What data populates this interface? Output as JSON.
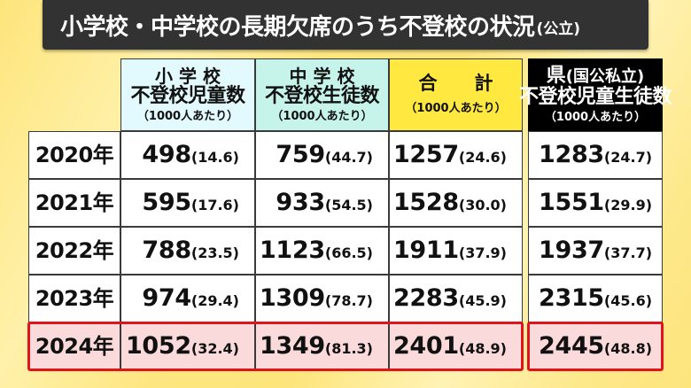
{
  "title": {
    "main": "小学校・中学校の長期欠席のうち不登校の状況",
    "suffix": "(公立)"
  },
  "table": {
    "headers": {
      "elementary": {
        "line1": "小 学 校",
        "line2": "不登校児童数",
        "note": "（1000人あたり）"
      },
      "middle": {
        "line1": "中 学 校",
        "line2": "不登校生徒数",
        "note": "（1000人あたり）"
      },
      "total": {
        "line1": "合　　計",
        "note": "（1000人あたり）"
      },
      "prefecture": {
        "line1_main": "県",
        "line1_sub": "(国公私立)",
        "line2": "不登校児童生徒数",
        "note": "（1000人あたり）"
      }
    },
    "rows": [
      {
        "year": "2020年",
        "elementary": {
          "count": "498",
          "rate": "(14.6)"
        },
        "middle": {
          "count": "759",
          "rate": "(44.7)"
        },
        "total": {
          "count": "1257",
          "rate": "(24.6)"
        },
        "prefecture": {
          "count": "1283",
          "rate": "(24.7)"
        }
      },
      {
        "year": "2021年",
        "elementary": {
          "count": "595",
          "rate": "(17.6)"
        },
        "middle": {
          "count": "933",
          "rate": "(54.5)"
        },
        "total": {
          "count": "1528",
          "rate": "(30.0)"
        },
        "prefecture": {
          "count": "1551",
          "rate": "(29.9)"
        }
      },
      {
        "year": "2022年",
        "elementary": {
          "count": "788",
          "rate": "(23.5)"
        },
        "middle": {
          "count": "1123",
          "rate": "(66.5)"
        },
        "total": {
          "count": "1911",
          "rate": "(37.9)"
        },
        "prefecture": {
          "count": "1937",
          "rate": "(37.7)"
        }
      },
      {
        "year": "2023年",
        "elementary": {
          "count": "974",
          "rate": "(29.4)"
        },
        "middle": {
          "count": "1309",
          "rate": "(78.7)"
        },
        "total": {
          "count": "2283",
          "rate": "(45.9)"
        },
        "prefecture": {
          "count": "2315",
          "rate": "(45.6)"
        }
      },
      {
        "year": "2024年",
        "elementary": {
          "count": "1052",
          "rate": "(32.4)"
        },
        "middle": {
          "count": "1349",
          "rate": "(81.3)"
        },
        "total": {
          "count": "2401",
          "rate": "(48.9)"
        },
        "prefecture": {
          "count": "2445",
          "rate": "(48.8)"
        }
      }
    ],
    "highlighted_row": "2024年"
  },
  "colors": {
    "background": "#fde57c",
    "title_bar": "#323232",
    "header_elementary": "#e2f9fd",
    "header_middle": "#c6f3ea",
    "header_total": "#ffe83f",
    "header_prefecture": "#000000",
    "highlight_border": "#e0141a",
    "highlight_fill": "#fadada"
  },
  "chart_data": {
    "type": "table",
    "title": "小学校・中学校の長期欠席のうち不登校の状況(公立)",
    "columns": [
      "年",
      "小学校 不登校児童数",
      "小学校 1000人あたり",
      "中学校 不登校生徒数",
      "中学校 1000人あたり",
      "合計",
      "合計 1000人あたり",
      "県(国公私立) 不登校児童生徒数",
      "県 1000人あたり"
    ],
    "categories": [
      "2020年",
      "2021年",
      "2022年",
      "2023年",
      "2024年"
    ],
    "series": [
      {
        "name": "小学校 不登校児童数",
        "values": [
          498,
          595,
          788,
          974,
          1052
        ]
      },
      {
        "name": "小学校 1000人あたり",
        "values": [
          14.6,
          17.6,
          23.5,
          29.4,
          32.4
        ]
      },
      {
        "name": "中学校 不登校生徒数",
        "values": [
          759,
          933,
          1123,
          1309,
          1349
        ]
      },
      {
        "name": "中学校 1000人あたり",
        "values": [
          44.7,
          54.5,
          66.5,
          78.7,
          81.3
        ]
      },
      {
        "name": "合計",
        "values": [
          1257,
          1528,
          1911,
          2283,
          2401
        ]
      },
      {
        "name": "合計 1000人あたり",
        "values": [
          24.6,
          30.0,
          37.9,
          45.9,
          48.9
        ]
      },
      {
        "name": "県(国公私立) 不登校児童生徒数",
        "values": [
          1283,
          1551,
          1937,
          2315,
          2445
        ]
      },
      {
        "name": "県 1000人あたり",
        "values": [
          24.7,
          29.9,
          37.7,
          45.6,
          48.8
        ]
      }
    ],
    "highlight": "2024年"
  }
}
